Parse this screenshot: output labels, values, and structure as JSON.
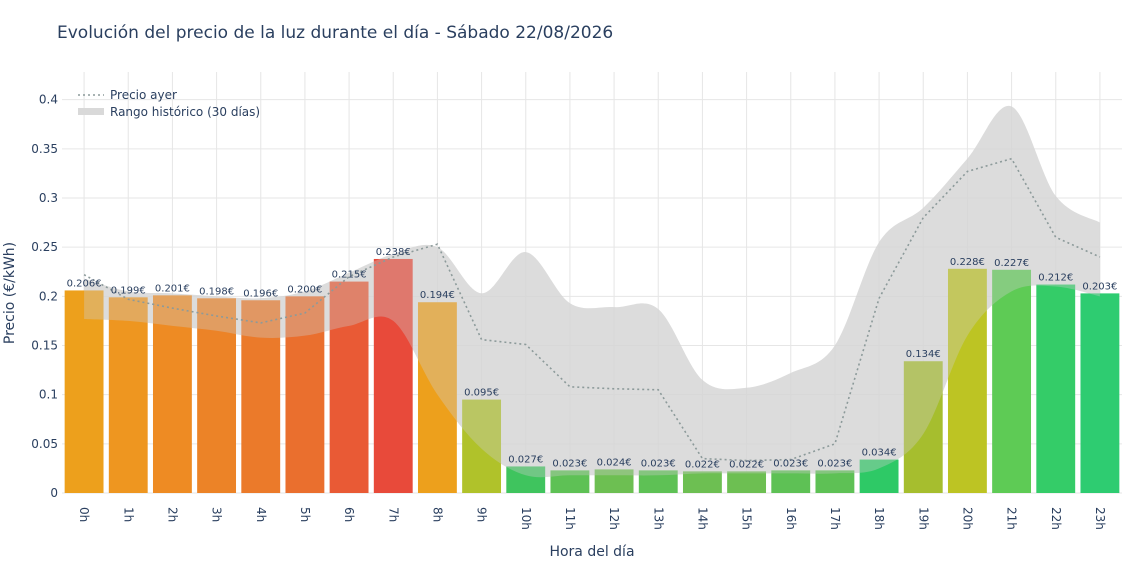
{
  "chart_data": {
    "type": "bar",
    "title": "Evolución del precio de la luz durante el día - Sábado 22/08/2026",
    "xlabel": "Hora del día",
    "ylabel": "Precio (€/kWh)",
    "ylim": [
      0,
      0.42
    ],
    "yticks": [
      {
        "value": 0,
        "label": "0"
      },
      {
        "value": 0.05,
        "label": "0.05"
      },
      {
        "value": 0.1,
        "label": "0.1"
      },
      {
        "value": 0.15,
        "label": "0.15"
      },
      {
        "value": 0.2,
        "label": "0.2"
      },
      {
        "value": 0.25,
        "label": "0.25"
      },
      {
        "value": 0.3,
        "label": "0.3"
      },
      {
        "value": 0.35,
        "label": "0.35"
      },
      {
        "value": 0.4,
        "label": "0.4"
      }
    ],
    "grid": true,
    "legend_position": "top-left",
    "categories": [
      "0h",
      "1h",
      "2h",
      "3h",
      "4h",
      "5h",
      "6h",
      "7h",
      "8h",
      "9h",
      "10h",
      "11h",
      "12h",
      "13h",
      "14h",
      "15h",
      "16h",
      "17h",
      "18h",
      "19h",
      "20h",
      "21h",
      "22h",
      "23h"
    ],
    "values": [
      0.206,
      0.199,
      0.201,
      0.198,
      0.196,
      0.2,
      0.215,
      0.238,
      0.194,
      0.095,
      0.027,
      0.023,
      0.024,
      0.023,
      0.022,
      0.022,
      0.023,
      0.023,
      0.034,
      0.134,
      0.228,
      0.227,
      0.212,
      0.203
    ],
    "bar_labels": [
      "0.206€",
      "0.199€",
      "0.201€",
      "0.198€",
      "0.196€",
      "0.200€",
      "0.215€",
      "0.238€",
      "0.194€",
      "0.095€",
      "0.027€",
      "0.023€",
      "0.024€",
      "0.023€",
      "0.022€",
      "0.022€",
      "0.023€",
      "0.023€",
      "0.034€",
      "0.134€",
      "0.228€",
      "0.227€",
      "0.212€",
      "0.203€"
    ],
    "bar_colors": [
      "#EDA01C",
      "#EE9620",
      "#EE8B23",
      "#EC8327",
      "#EB7A2A",
      "#EA6F2E",
      "#E95A35",
      "#E84A3A",
      "#EDA01C",
      "#B0C22A",
      "#3FC45E",
      "#5EC155",
      "#6DBF52",
      "#5EC155",
      "#6DBF52",
      "#6DBF52",
      "#5EC155",
      "#5EC155",
      "#2EC966",
      "#A6BE2E",
      "#BDC423",
      "#5ECB55",
      "#34CC68",
      "#2ECC71"
    ],
    "series": [
      {
        "name": "Precio ayer",
        "type": "line",
        "style": "dotted",
        "color": "#8c9a9a",
        "values": [
          0.222,
          0.197,
          0.188,
          0.18,
          0.173,
          0.183,
          0.22,
          0.24,
          0.253,
          0.156,
          0.151,
          0.108,
          0.106,
          0.105,
          0.035,
          0.033,
          0.034,
          0.05,
          0.198,
          0.28,
          0.327,
          0.34,
          0.26,
          0.24
        ]
      },
      {
        "name": "Rango histórico (30 días)",
        "type": "band",
        "color": "#d9d9d9",
        "upper": [
          0.218,
          0.205,
          0.203,
          0.2,
          0.198,
          0.205,
          0.224,
          0.243,
          0.25,
          0.203,
          0.245,
          0.193,
          0.189,
          0.187,
          0.115,
          0.107,
          0.122,
          0.15,
          0.255,
          0.29,
          0.34,
          0.393,
          0.302,
          0.275
        ],
        "lower": [
          0.177,
          0.175,
          0.17,
          0.165,
          0.158,
          0.16,
          0.17,
          0.175,
          0.1,
          0.045,
          0.018,
          0.018,
          0.018,
          0.018,
          0.02,
          0.02,
          0.02,
          0.02,
          0.025,
          0.06,
          0.16,
          0.205,
          0.21,
          0.2
        ]
      }
    ]
  }
}
